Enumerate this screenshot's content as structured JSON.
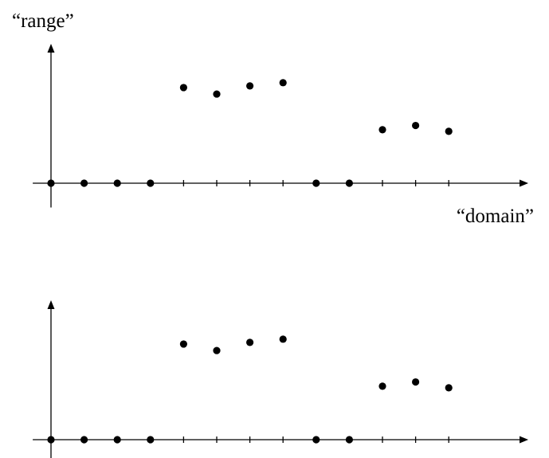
{
  "chart_data": [
    {
      "type": "scatter",
      "ylabel": "“range”",
      "xlabel": "“domain”",
      "x": [
        0,
        1,
        2,
        3,
        4,
        5,
        6,
        7,
        8,
        9,
        10,
        11,
        12
      ],
      "y": [
        0,
        0,
        0,
        0,
        2.95,
        2.75,
        3.0,
        3.1,
        0,
        0,
        1.65,
        1.78,
        1.6
      ],
      "xlim": [
        -0.55,
        14.4
      ],
      "ylim": [
        -0.75,
        4.3
      ],
      "grid": false,
      "marker_color": "#000000"
    },
    {
      "type": "scatter",
      "ylabel": "",
      "xlabel": "",
      "x": [
        0,
        1,
        2,
        3,
        4,
        5,
        6,
        7,
        8,
        9,
        10,
        11,
        12
      ],
      "y": [
        0,
        0,
        0,
        0,
        2.95,
        2.75,
        3.0,
        3.1,
        0,
        0,
        1.65,
        1.78,
        1.6
      ],
      "xlim": [
        -0.55,
        14.4
      ],
      "ylim": [
        -0.75,
        4.3
      ],
      "grid": false,
      "marker_color": "#000000"
    }
  ]
}
